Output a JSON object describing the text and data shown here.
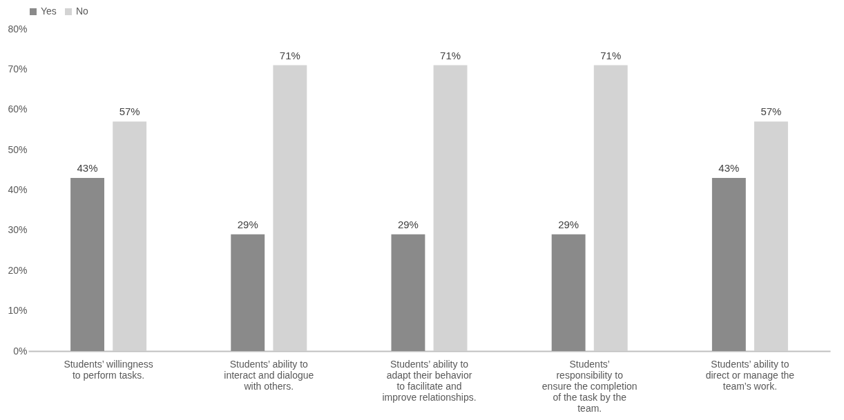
{
  "chart_data": {
    "type": "bar",
    "categories": [
      "Students’ willingness to perform tasks.",
      "Students’ ability to interact and dialogue with others.",
      "Students’ ability to adapt their behavior to facilitate and improve relationships.",
      "Students’ responsibility to ensure the completion of the task by the team.",
      "Students’ ability to direct or manage the team’s work."
    ],
    "series": [
      {
        "name": "Yes",
        "color": "#8a8a8a",
        "values": [
          43,
          29,
          29,
          29,
          43
        ],
        "value_labels": [
          "43%",
          "29%",
          "29%",
          "29%",
          "43%"
        ]
      },
      {
        "name": "No",
        "color": "#d3d3d3",
        "values": [
          57,
          71,
          71,
          71,
          57
        ],
        "value_labels": [
          "57%",
          "71%",
          "71%",
          "71%",
          "57%"
        ]
      }
    ],
    "ylim": [
      0,
      80
    ],
    "yticks": [
      {
        "value": 0,
        "label": "0%"
      },
      {
        "value": 10,
        "label": "10%"
      },
      {
        "value": 20,
        "label": "20%"
      },
      {
        "value": 30,
        "label": "30%"
      },
      {
        "value": 40,
        "label": "40%"
      },
      {
        "value": 50,
        "label": "50%"
      },
      {
        "value": 60,
        "label": "60%"
      },
      {
        "value": 70,
        "label": "70%"
      },
      {
        "value": 80,
        "label": "80%"
      }
    ],
    "grid": false,
    "legend": "top"
  }
}
